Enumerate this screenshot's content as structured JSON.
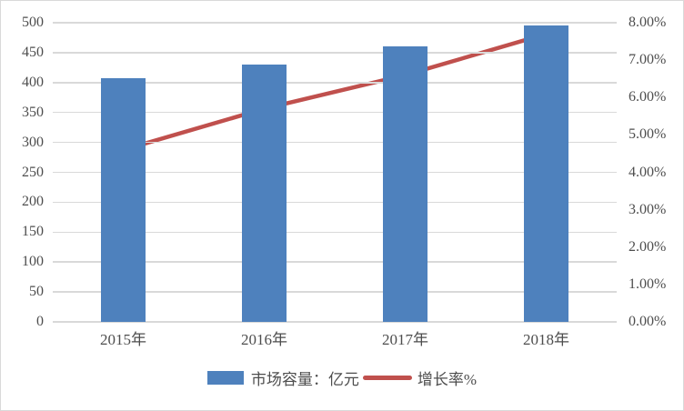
{
  "chart_data": {
    "type": "combo",
    "categories": [
      "2015年",
      "2016年",
      "2017年",
      "2018年"
    ],
    "series": [
      {
        "name": "市场容量：亿元",
        "type": "bar",
        "axis": "left",
        "color": "#4e81bd",
        "values": [
          408,
          430,
          460,
          495
        ]
      },
      {
        "name": "增长率%",
        "type": "line",
        "axis": "right",
        "color": "#c0504d",
        "values": [
          4.6,
          5.7,
          6.6,
          7.7
        ]
      }
    ],
    "left_axis": {
      "min": 0,
      "max": 500,
      "step": 50,
      "tick_labels": [
        "0",
        "50",
        "100",
        "150",
        "200",
        "250",
        "300",
        "350",
        "400",
        "450",
        "500"
      ]
    },
    "right_axis": {
      "min": 0,
      "max": 8,
      "step": 1,
      "tick_labels": [
        "0.00%",
        "1.00%",
        "2.00%",
        "3.00%",
        "4.00%",
        "5.00%",
        "6.00%",
        "7.00%",
        "8.00%"
      ]
    },
    "grid": true,
    "legend_position": "bottom",
    "colors": {
      "gridline": "#d9d9d9",
      "text": "#4d4d4d",
      "background": "#ffffff",
      "border": "#d9d9d9"
    }
  }
}
